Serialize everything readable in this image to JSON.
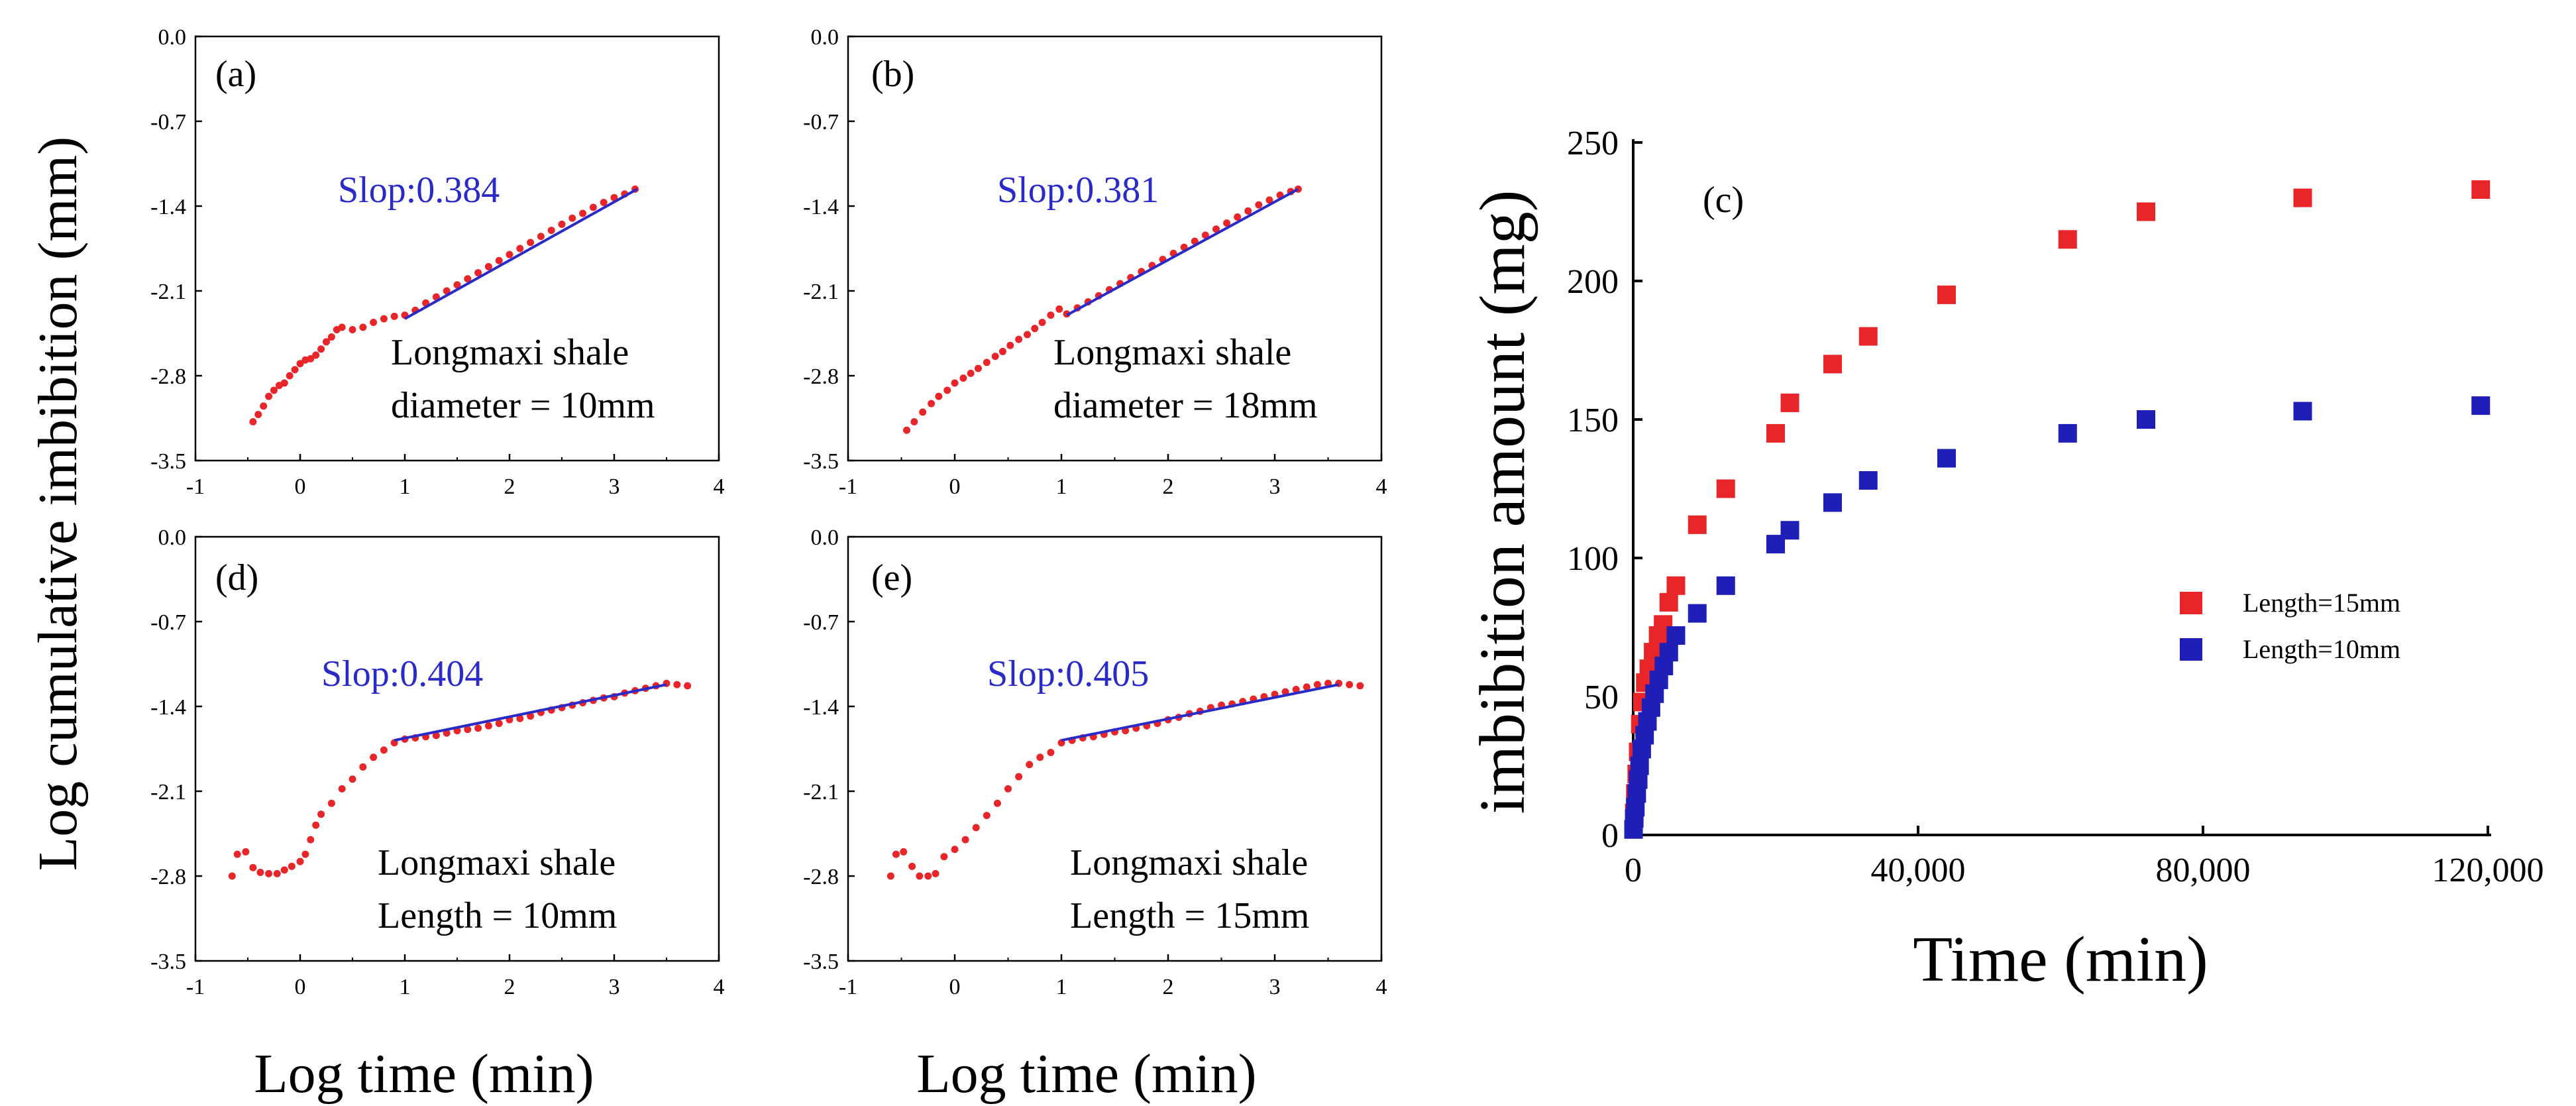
{
  "figure": {
    "ylabel_left": "Log cumulative imbibition (mm)",
    "xlabel_left_1": "Log time (min)",
    "xlabel_left_2": "Log time (min)"
  },
  "colors": {
    "red": "#e8262a",
    "blue": "#1f1fb8",
    "fit": "#2a2ac8"
  },
  "chart_data": [
    {
      "type": "scatter",
      "panel": "(a)",
      "fit_label": "Slop:0.384",
      "note_lines": [
        "Longmaxi shale",
        "diameter = 10mm"
      ],
      "xlim": [
        -1,
        4
      ],
      "ylim": [
        -3.5,
        0
      ],
      "xticks": [
        "-1",
        "0",
        "1",
        "2",
        "3",
        "4"
      ],
      "yticks": [
        "0.0",
        "-0.7",
        "-1.4",
        "-2.1",
        "-2.8",
        "-3.5"
      ],
      "fit": {
        "x": [
          1.0,
          3.22
        ],
        "y": [
          -2.33,
          -1.26
        ]
      },
      "series": [
        {
          "x": [
            -0.45,
            -0.4,
            -0.35,
            -0.3,
            -0.25,
            -0.2,
            -0.15,
            -0.1,
            -0.05,
            0.0,
            0.05,
            0.1,
            0.15,
            0.2,
            0.25,
            0.3,
            0.35,
            0.4,
            0.5,
            0.6,
            0.7,
            0.8,
            0.9,
            1.0,
            1.1,
            1.2,
            1.3,
            1.4,
            1.5,
            1.6,
            1.7,
            1.8,
            1.9,
            2.0,
            2.1,
            2.2,
            2.3,
            2.4,
            2.5,
            2.6,
            2.7,
            2.8,
            2.9,
            3.0,
            3.1,
            3.2
          ],
          "y": [
            -3.18,
            -3.12,
            -3.05,
            -2.97,
            -2.92,
            -2.88,
            -2.86,
            -2.8,
            -2.75,
            -2.7,
            -2.67,
            -2.66,
            -2.63,
            -2.58,
            -2.52,
            -2.48,
            -2.42,
            -2.4,
            -2.42,
            -2.4,
            -2.36,
            -2.33,
            -2.31,
            -2.3,
            -2.26,
            -2.2,
            -2.15,
            -2.1,
            -2.05,
            -2.0,
            -1.95,
            -1.9,
            -1.85,
            -1.8,
            -1.75,
            -1.7,
            -1.65,
            -1.6,
            -1.55,
            -1.5,
            -1.46,
            -1.41,
            -1.37,
            -1.33,
            -1.3,
            -1.26
          ]
        }
      ]
    },
    {
      "type": "scatter",
      "panel": "(b)",
      "fit_label": "Slop:0.381",
      "note_lines": [
        "Longmaxi shale",
        "diameter = 18mm"
      ],
      "xlim": [
        -1,
        4
      ],
      "ylim": [
        -3.5,
        0
      ],
      "xticks": [
        "-1",
        "0",
        "1",
        "2",
        "3",
        "4"
      ],
      "yticks": [
        "0.0",
        "-0.7",
        "-1.4",
        "-2.1",
        "-2.8",
        "-3.5"
      ],
      "fit": {
        "x": [
          1.05,
          3.22
        ],
        "y": [
          -2.3,
          -1.26
        ]
      },
      "series": [
        {
          "x": [
            -0.45,
            -0.38,
            -0.3,
            -0.22,
            -0.15,
            -0.07,
            0.0,
            0.08,
            0.15,
            0.22,
            0.3,
            0.38,
            0.45,
            0.52,
            0.6,
            0.68,
            0.75,
            0.82,
            0.9,
            0.98,
            1.05,
            1.15,
            1.25,
            1.35,
            1.45,
            1.55,
            1.65,
            1.75,
            1.85,
            1.95,
            2.05,
            2.15,
            2.25,
            2.35,
            2.45,
            2.55,
            2.65,
            2.75,
            2.85,
            2.95,
            3.05,
            3.15,
            3.22
          ],
          "y": [
            -3.25,
            -3.18,
            -3.1,
            -3.03,
            -2.97,
            -2.92,
            -2.86,
            -2.82,
            -2.78,
            -2.74,
            -2.69,
            -2.64,
            -2.6,
            -2.55,
            -2.5,
            -2.46,
            -2.41,
            -2.36,
            -2.3,
            -2.25,
            -2.29,
            -2.24,
            -2.19,
            -2.14,
            -2.09,
            -2.04,
            -1.99,
            -1.94,
            -1.89,
            -1.84,
            -1.79,
            -1.74,
            -1.69,
            -1.64,
            -1.59,
            -1.54,
            -1.49,
            -1.44,
            -1.39,
            -1.35,
            -1.31,
            -1.28,
            -1.26
          ]
        }
      ]
    },
    {
      "type": "scatter",
      "panel": "(d)",
      "fit_label": "Slop:0.404",
      "note_lines": [
        "Longmaxi shale",
        "Length = 10mm"
      ],
      "xlim": [
        -1,
        4
      ],
      "ylim": [
        -3.5,
        0
      ],
      "xticks": [
        "-1",
        "0",
        "1",
        "2",
        "3",
        "4"
      ],
      "yticks": [
        "0.0",
        "-0.7",
        "-1.4",
        "-2.1",
        "-2.8",
        "-3.5"
      ],
      "fit": {
        "x": [
          0.9,
          3.5
        ],
        "y": [
          -1.68,
          -1.22
        ]
      },
      "series": [
        {
          "x": [
            -0.65,
            -0.6,
            -0.52,
            -0.45,
            -0.38,
            -0.3,
            -0.22,
            -0.15,
            -0.08,
            0.0,
            0.05,
            0.1,
            0.15,
            0.2,
            0.3,
            0.4,
            0.5,
            0.6,
            0.7,
            0.8,
            0.9,
            1.0,
            1.1,
            1.2,
            1.3,
            1.4,
            1.5,
            1.6,
            1.7,
            1.8,
            1.9,
            2.0,
            2.1,
            2.2,
            2.3,
            2.4,
            2.5,
            2.6,
            2.7,
            2.8,
            2.9,
            3.0,
            3.1,
            3.2,
            3.3,
            3.4,
            3.5,
            3.6,
            3.7
          ],
          "y": [
            -2.8,
            -2.62,
            -2.6,
            -2.73,
            -2.77,
            -2.78,
            -2.78,
            -2.75,
            -2.72,
            -2.68,
            -2.62,
            -2.5,
            -2.38,
            -2.29,
            -2.2,
            -2.08,
            -2.0,
            -1.9,
            -1.82,
            -1.76,
            -1.7,
            -1.67,
            -1.66,
            -1.65,
            -1.64,
            -1.62,
            -1.6,
            -1.59,
            -1.58,
            -1.56,
            -1.54,
            -1.51,
            -1.5,
            -1.48,
            -1.45,
            -1.43,
            -1.41,
            -1.39,
            -1.37,
            -1.35,
            -1.33,
            -1.32,
            -1.29,
            -1.27,
            -1.25,
            -1.23,
            -1.21,
            -1.22,
            -1.23
          ]
        }
      ]
    },
    {
      "type": "scatter",
      "panel": "(e)",
      "fit_label": "Slop:0.405",
      "note_lines": [
        "Longmaxi shale",
        "Length = 15mm"
      ],
      "xlim": [
        -1,
        4
      ],
      "ylim": [
        -3.5,
        0
      ],
      "xticks": [
        "-1",
        "0",
        "1",
        "2",
        "3",
        "4"
      ],
      "yticks": [
        "0.0",
        "-0.7",
        "-1.4",
        "-2.1",
        "-2.8",
        "-3.5"
      ],
      "fit": {
        "x": [
          1.0,
          3.6
        ],
        "y": [
          -1.68,
          -1.22
        ]
      },
      "series": [
        {
          "x": [
            -0.6,
            -0.55,
            -0.48,
            -0.4,
            -0.33,
            -0.25,
            -0.18,
            -0.1,
            0.0,
            0.1,
            0.2,
            0.3,
            0.4,
            0.5,
            0.6,
            0.7,
            0.8,
            0.9,
            1.0,
            1.1,
            1.2,
            1.3,
            1.4,
            1.5,
            1.6,
            1.7,
            1.8,
            1.9,
            2.0,
            2.1,
            2.2,
            2.3,
            2.4,
            2.5,
            2.6,
            2.7,
            2.8,
            2.9,
            3.0,
            3.1,
            3.2,
            3.3,
            3.4,
            3.5,
            3.6,
            3.7,
            3.8
          ],
          "y": [
            -2.8,
            -2.62,
            -2.6,
            -2.72,
            -2.8,
            -2.8,
            -2.78,
            -2.64,
            -2.58,
            -2.5,
            -2.4,
            -2.3,
            -2.2,
            -2.08,
            -1.98,
            -1.88,
            -1.82,
            -1.78,
            -1.7,
            -1.68,
            -1.66,
            -1.65,
            -1.63,
            -1.61,
            -1.6,
            -1.58,
            -1.56,
            -1.54,
            -1.51,
            -1.49,
            -1.46,
            -1.44,
            -1.41,
            -1.39,
            -1.38,
            -1.36,
            -1.34,
            -1.32,
            -1.3,
            -1.28,
            -1.26,
            -1.24,
            -1.22,
            -1.21,
            -1.21,
            -1.22,
            -1.23
          ]
        }
      ]
    },
    {
      "type": "scatter",
      "panel": "(c)",
      "xlabel": "Time (min)",
      "ylabel": "imbibition amount (mg)",
      "xlim": [
        0,
        120000
      ],
      "ylim": [
        0,
        250
      ],
      "xticks": [
        "0",
        "40,000",
        "80,000",
        "120,000"
      ],
      "yticks": [
        "0",
        "50",
        "100",
        "150",
        "200",
        "250"
      ],
      "legend_position": "center-right",
      "series": [
        {
          "name": "Length=15mm",
          "color": "#e8262a",
          "x": [
            50,
            150,
            300,
            500,
            700,
            1000,
            1300,
            1700,
            2200,
            2800,
            3500,
            4200,
            5000,
            6000,
            9000,
            13000,
            20000,
            22000,
            28000,
            33000,
            44000,
            61000,
            72000,
            94000,
            119000
          ],
          "y": [
            2,
            8,
            15,
            22,
            30,
            40,
            48,
            55,
            60,
            66,
            72,
            76,
            84,
            90,
            112,
            125,
            145,
            156,
            170,
            180,
            195,
            215,
            225,
            230,
            233
          ]
        },
        {
          "name": "Length=10mm",
          "color": "#1f1fb8",
          "x": [
            50,
            150,
            300,
            500,
            700,
            900,
            1200,
            1600,
            2000,
            2500,
            3000,
            3600,
            4300,
            5000,
            6000,
            9000,
            13000,
            20000,
            22000,
            28000,
            33000,
            44000,
            61000,
            72000,
            94000,
            119000
          ],
          "y": [
            2,
            6,
            10,
            15,
            20,
            25,
            31,
            36,
            41,
            46,
            51,
            56,
            61,
            66,
            72,
            80,
            90,
            105,
            110,
            120,
            128,
            136,
            145,
            150,
            153,
            155
          ]
        }
      ]
    }
  ]
}
